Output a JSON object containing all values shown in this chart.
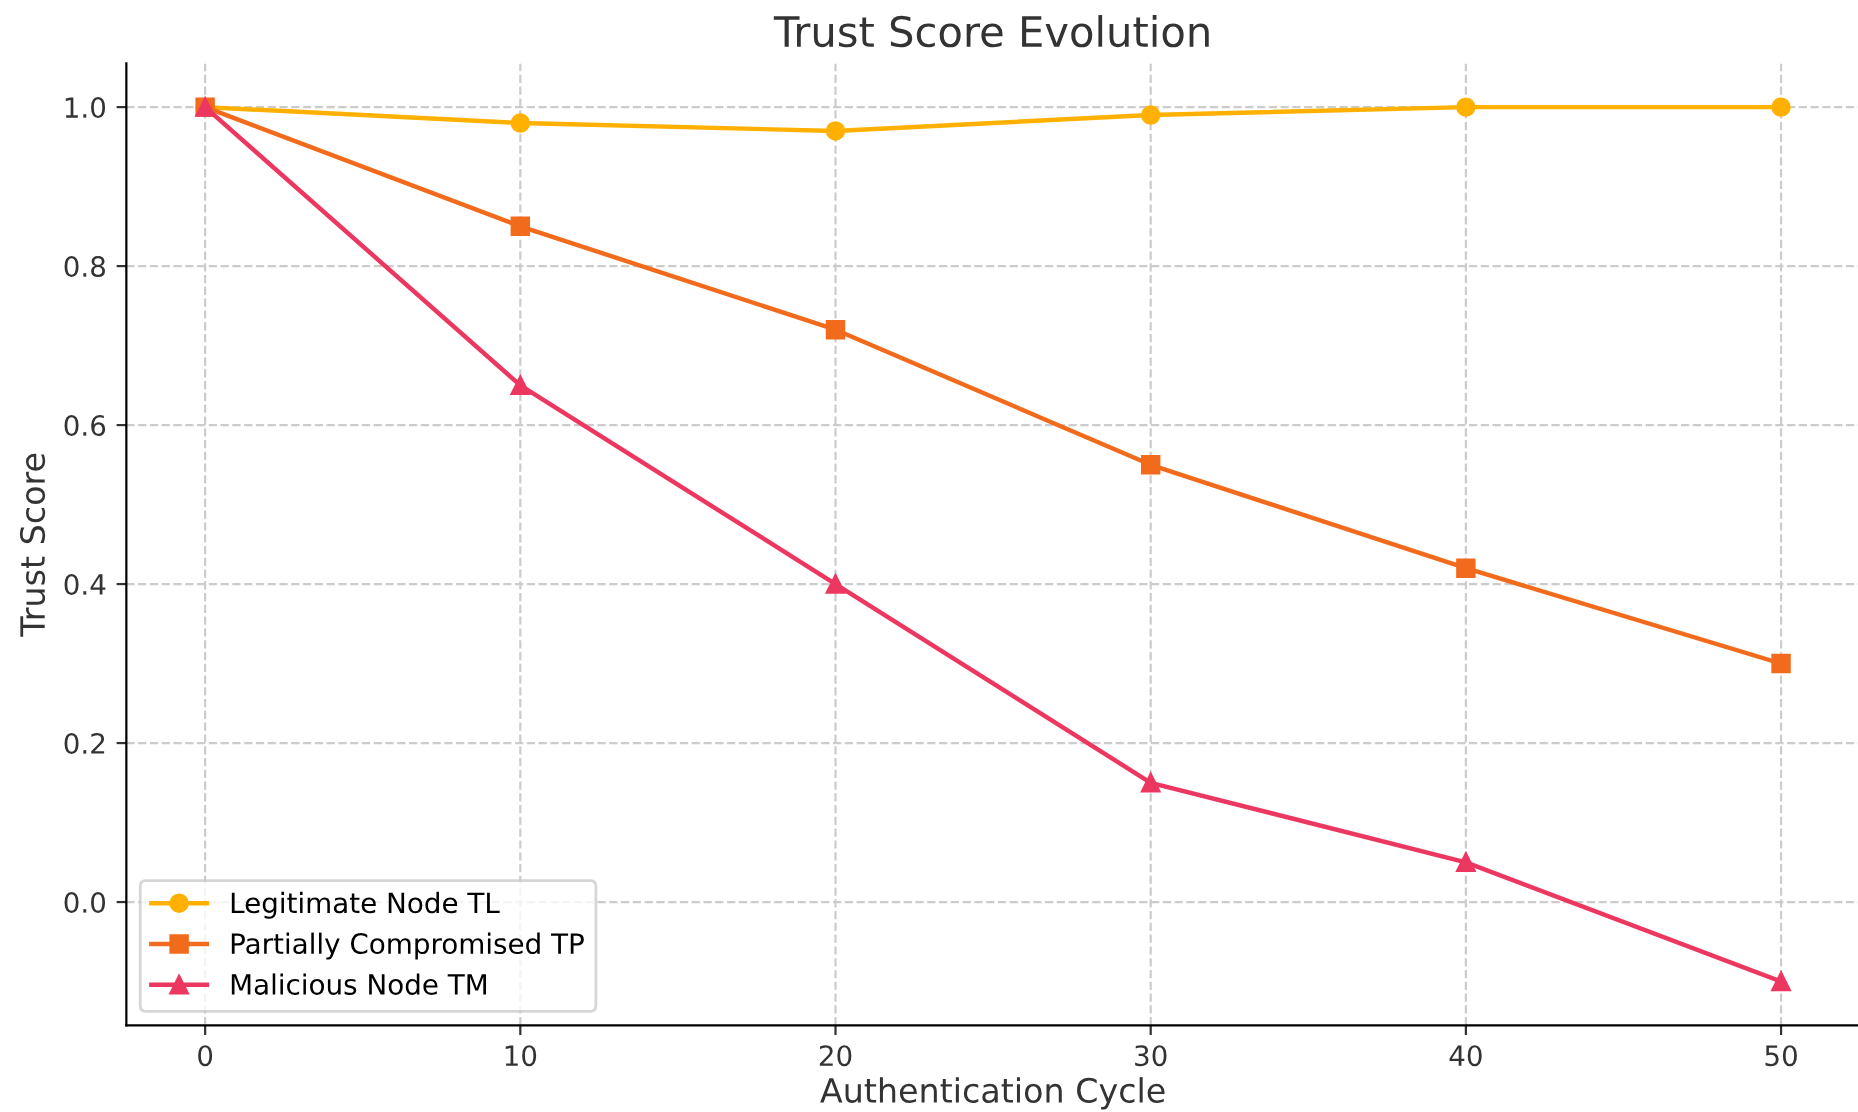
{
  "chart_data": {
    "type": "line",
    "title": "Trust Score Evolution",
    "xlabel": "Authentication Cycle",
    "ylabel": "Trust Score",
    "x": [
      0,
      10,
      20,
      30,
      40,
      50
    ],
    "series": [
      {
        "name": "Legitimate Node TL",
        "color": "#ffb000",
        "marker": "circle",
        "values": [
          1.0,
          0.98,
          0.97,
          0.99,
          1.0,
          1.0
        ]
      },
      {
        "name": "Partially Compromised TP",
        "color": "#f26b1d",
        "marker": "square",
        "values": [
          1.0,
          0.85,
          0.72,
          0.55,
          0.42,
          0.3
        ]
      },
      {
        "name": "Malicious Node TM",
        "color": "#ec3760",
        "marker": "triangle",
        "values": [
          1.0,
          0.65,
          0.4,
          0.15,
          0.05,
          -0.1
        ]
      }
    ],
    "xlim": [
      -2.5,
      52.5
    ],
    "ylim": [
      -0.155,
      1.055
    ],
    "xticks": [
      0,
      10,
      20,
      30,
      40,
      50
    ],
    "yticks": [
      {
        "value": 0,
        "label": "0.0"
      },
      0.2,
      0.4,
      0.6,
      0.8,
      {
        "value": 1,
        "label": "1.0"
      }
    ],
    "grid": true,
    "legend": "bottom left",
    "line_style": "solid"
  }
}
